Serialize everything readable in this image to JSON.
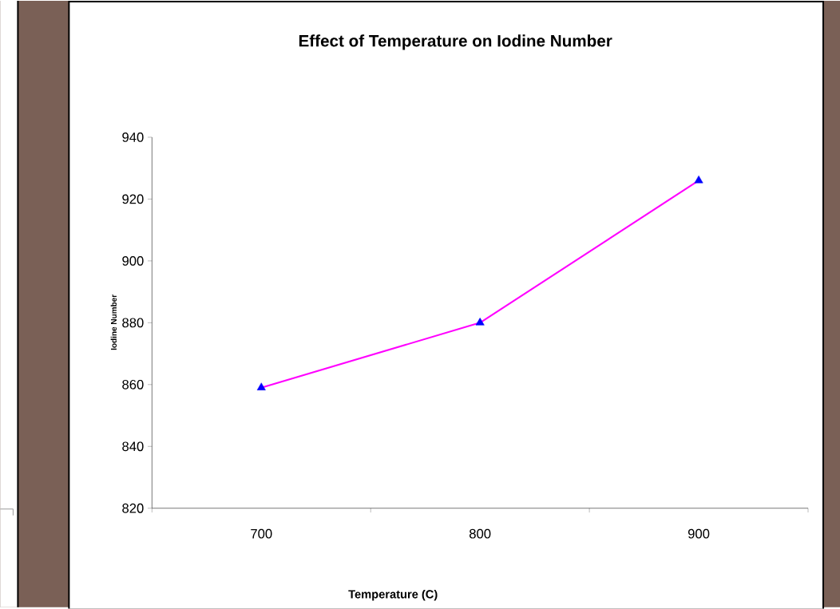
{
  "chart_data": {
    "type": "line",
    "title": "Effect of Temperature on Iodine Number",
    "xlabel": "Temperature (C)",
    "ylabel": "Iodine Number",
    "categories": [
      "700",
      "800",
      "900"
    ],
    "series": [
      {
        "color": "#ff00ff",
        "colors": [
          "#0000ff",
          "#0000ff",
          "#0000ff"
        ],
        "values": [
          859,
          880,
          926
        ]
      }
    ],
    "ylim": [
      820,
      940
    ],
    "yticks": [
      820,
      840,
      860,
      880,
      900,
      920,
      940
    ],
    "grid": false,
    "marker": "triangle",
    "line_style": "solid"
  }
}
